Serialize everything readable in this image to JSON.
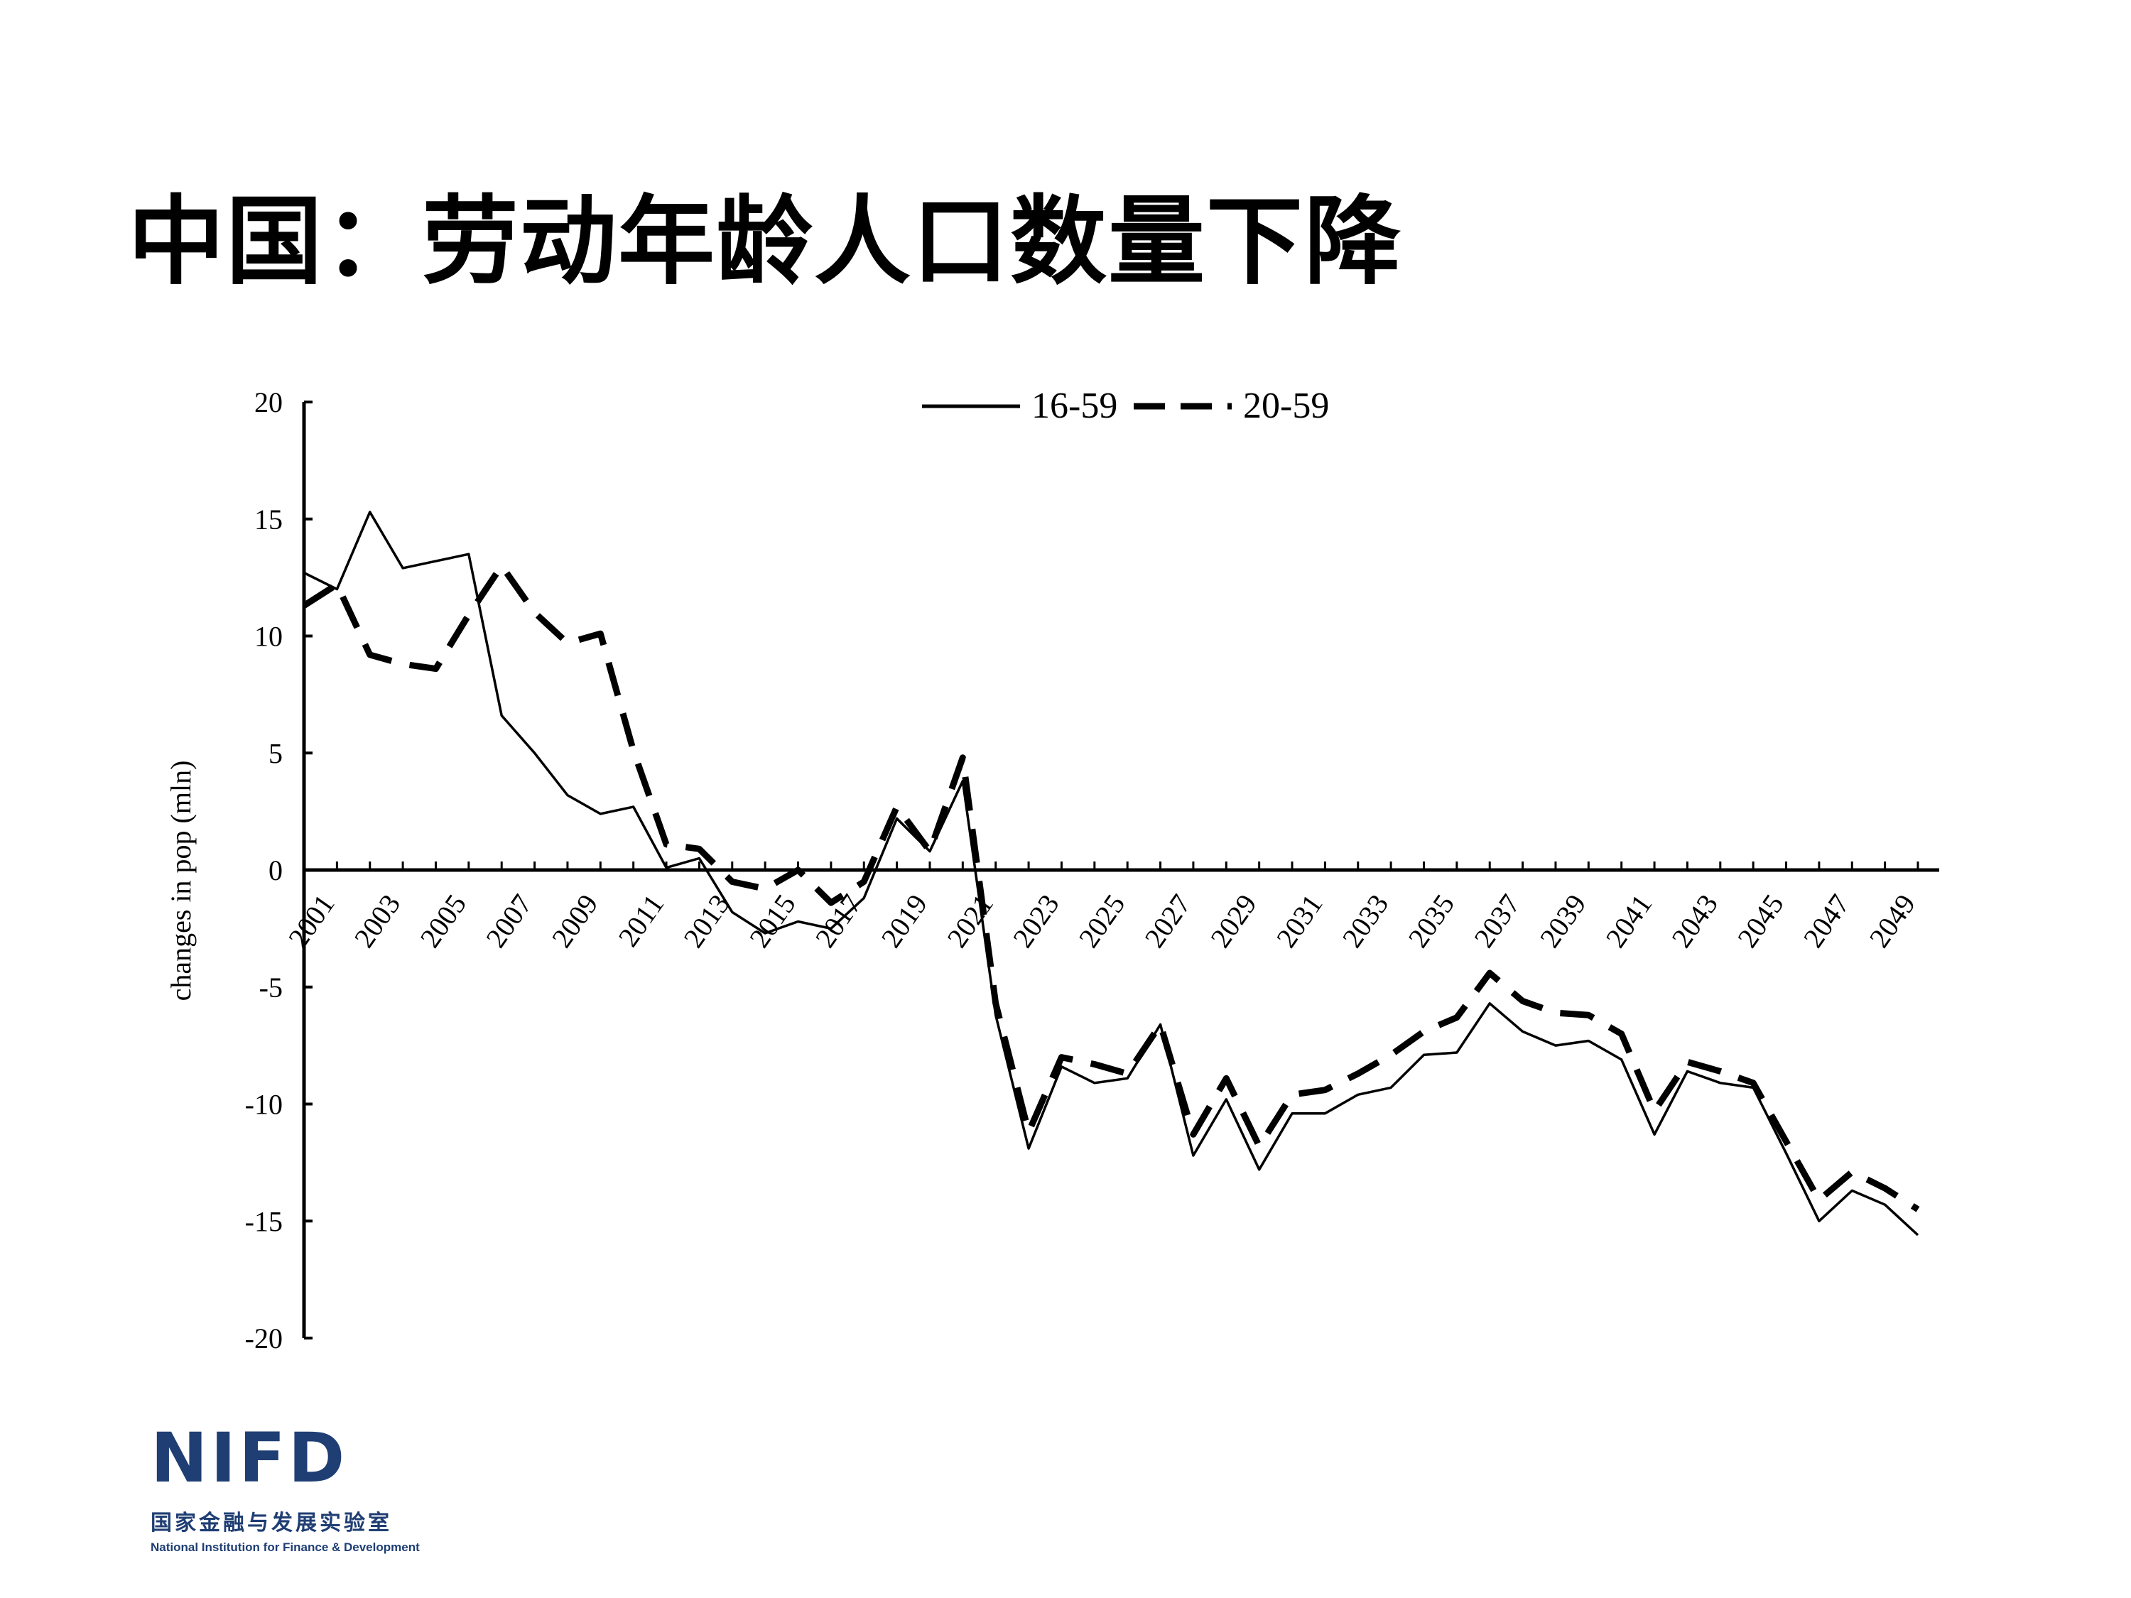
{
  "title": "中国：劳动年龄人口数量下降",
  "logo": {
    "mark": "NIFD",
    "name_cn": "国家金融与发展实验室",
    "name_en": "National Institution for Finance & Development"
  },
  "chart_data": {
    "type": "line",
    "title": "",
    "xlabel": "",
    "ylabel": "changes in pop (mln)",
    "ylim": [
      -20,
      20
    ],
    "yticks": [
      20,
      15,
      10,
      5,
      0,
      -5,
      -10,
      -15,
      -20
    ],
    "xtick_labels": [
      "2001",
      "2003",
      "2005",
      "2007",
      "2009",
      "2011",
      "2013",
      "2015",
      "2017",
      "2019",
      "2021",
      "2023",
      "2025",
      "2027",
      "2029",
      "2031",
      "2033",
      "2035",
      "2037",
      "2039",
      "2041",
      "2043",
      "2045",
      "2047",
      "2049"
    ],
    "x": [
      2001,
      2002,
      2003,
      2004,
      2005,
      2006,
      2007,
      2008,
      2009,
      2010,
      2011,
      2012,
      2013,
      2014,
      2015,
      2016,
      2017,
      2018,
      2019,
      2020,
      2021,
      2022,
      2023,
      2024,
      2025,
      2026,
      2027,
      2028,
      2029,
      2030,
      2031,
      2032,
      2033,
      2034,
      2035,
      2036,
      2037,
      2038,
      2039,
      2040,
      2041,
      2042,
      2043,
      2044,
      2045,
      2046,
      2047,
      2048,
      2049,
      2050
    ],
    "legend_position": "top",
    "grid": false,
    "series": [
      {
        "name": "16-59",
        "style": "solid",
        "values": [
          12.7,
          12.0,
          15.3,
          12.9,
          13.2,
          13.5,
          6.6,
          5.0,
          3.2,
          2.4,
          2.7,
          0.1,
          0.5,
          -1.8,
          -2.7,
          -2.2,
          -2.5,
          -1.2,
          2.2,
          0.8,
          3.8,
          -6.2,
          -11.9,
          -8.4,
          -9.1,
          -8.9,
          -6.6,
          -12.2,
          -9.8,
          -12.8,
          -10.4,
          -10.4,
          -9.6,
          -9.3,
          -7.9,
          -7.8,
          -5.7,
          -6.9,
          -7.5,
          -7.3,
          -8.1,
          -11.3,
          -8.6,
          -9.1,
          -9.3,
          -12.1,
          -15.0,
          -13.7,
          -14.3,
          -15.6
        ]
      },
      {
        "name": "20-59",
        "style": "dashed",
        "values": [
          11.3,
          12.2,
          9.2,
          8.8,
          8.6,
          10.9,
          13.0,
          11.0,
          9.7,
          10.1,
          5.1,
          1.1,
          0.9,
          -0.5,
          -0.8,
          0.0,
          -1.4,
          -0.5,
          2.7,
          0.8,
          4.8,
          -5.7,
          -11.2,
          -8.0,
          -8.3,
          -8.7,
          -6.6,
          -11.3,
          -8.9,
          -11.8,
          -9.6,
          -9.4,
          -8.7,
          -7.9,
          -6.9,
          -6.3,
          -4.4,
          -5.6,
          -6.1,
          -6.2,
          -7.0,
          -10.3,
          -8.2,
          -8.6,
          -9.1,
          -11.6,
          -14.1,
          -12.9,
          -13.6,
          -14.5
        ]
      }
    ]
  }
}
